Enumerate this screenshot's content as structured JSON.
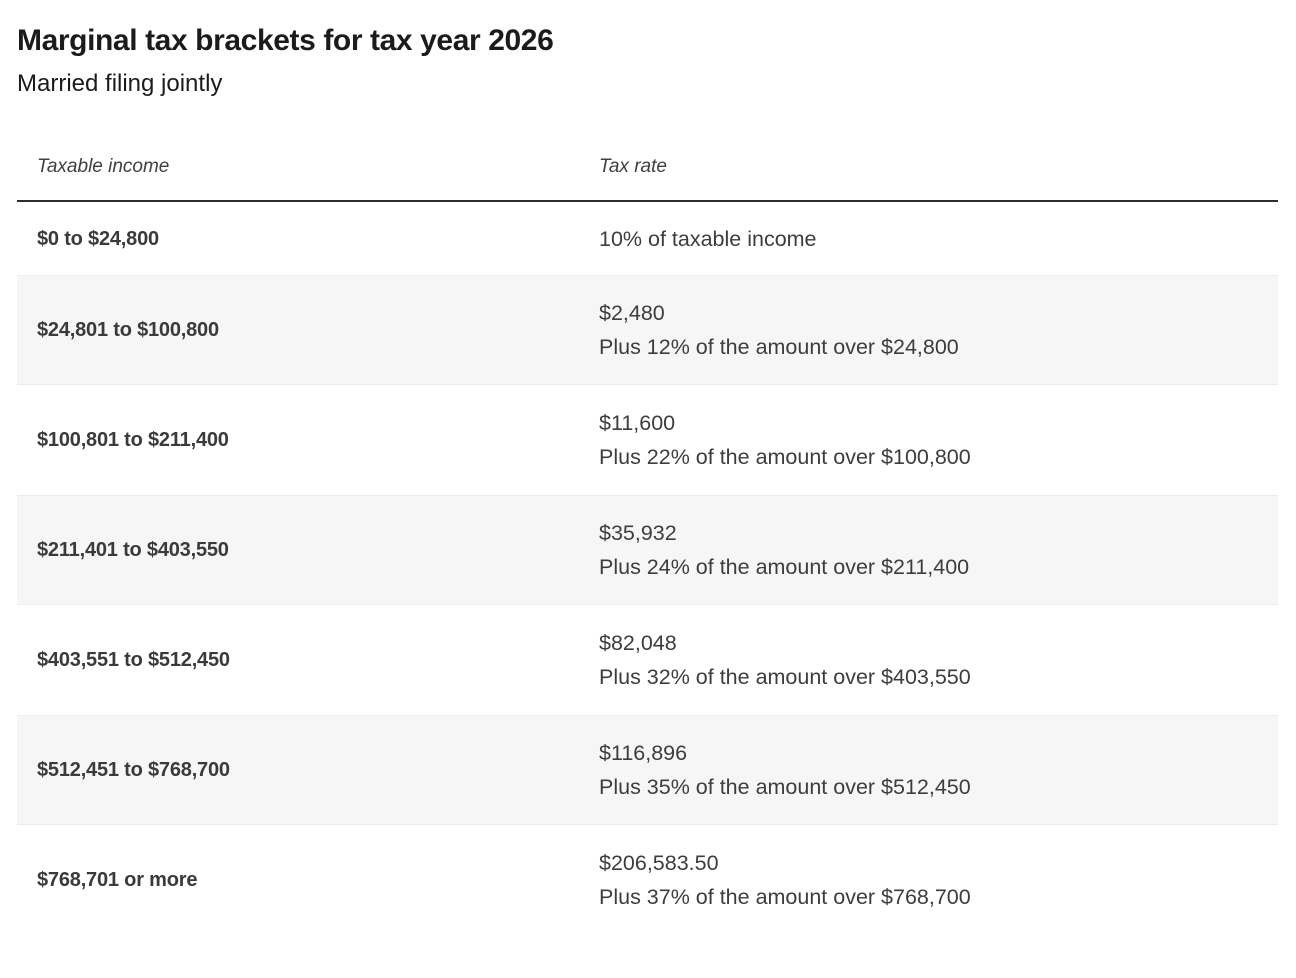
{
  "header": {
    "title": "Marginal tax brackets for tax year 2026",
    "subtitle": "Married filing jointly"
  },
  "table": {
    "columns": [
      {
        "label": "Taxable income"
      },
      {
        "label": "Tax rate"
      }
    ],
    "rows": [
      {
        "income": "$0 to $24,800",
        "rate_line1": "10% of taxable income",
        "rate_line2": ""
      },
      {
        "income": "$24,801 to $100,800",
        "rate_line1": "$2,480",
        "rate_line2": "Plus 12% of the amount over $24,800"
      },
      {
        "income": "$100,801 to $211,400",
        "rate_line1": "$11,600",
        "rate_line2": "Plus 22% of the amount over $100,800"
      },
      {
        "income": "$211,401 to $403,550",
        "rate_line1": "$35,932",
        "rate_line2": "Plus 24% of the amount over $211,400"
      },
      {
        "income": "$403,551 to $512,450",
        "rate_line1": "$82,048",
        "rate_line2": "Plus 32% of the amount over $403,550"
      },
      {
        "income": "$512,451 to $768,700",
        "rate_line1": "$116,896",
        "rate_line2": "Plus 35% of the amount over $512,450"
      },
      {
        "income": "$768,701 or more",
        "rate_line1": "$206,583.50",
        "rate_line2": "Plus 37% of the amount over $768,700"
      }
    ]
  },
  "colors": {
    "title_text": "#1b1b1b",
    "body_text": "#3d3d3d",
    "stripe_background": "#f6f6f6",
    "stripe_border": "#ececec",
    "header_rule": "#2e2e2e",
    "page_background": "#ffffff"
  },
  "chart_data": {
    "type": "table",
    "title": "Marginal tax brackets for tax year 2026",
    "subtitle": "Married filing jointly",
    "columns": [
      "Taxable income",
      "Tax rate"
    ],
    "rows": [
      [
        "$0 to $24,800",
        "10% of taxable income"
      ],
      [
        "$24,801 to $100,800",
        "$2,480\nPlus 12% of the amount over $24,800"
      ],
      [
        "$100,801 to $211,400",
        "$11,600\nPlus 22% of the amount over $100,800"
      ],
      [
        "$211,401 to $403,550",
        "$35,932\nPlus 24% of the amount over $211,400"
      ],
      [
        "$403,551 to $512,450",
        "$82,048\nPlus 32% of the amount over $403,550"
      ],
      [
        "$512,451 to $768,700",
        "$116,896\nPlus 35% of the amount over $512,450"
      ],
      [
        "$768,701 or more",
        "$206,583.50\nPlus 37% of the amount over $768,700"
      ]
    ],
    "brackets": [
      {
        "min": 0,
        "max": 24800,
        "rate_pct": 10,
        "base_tax": 0
      },
      {
        "min": 24801,
        "max": 100800,
        "rate_pct": 12,
        "base_tax": 2480
      },
      {
        "min": 100801,
        "max": 211400,
        "rate_pct": 22,
        "base_tax": 11600
      },
      {
        "min": 211401,
        "max": 403550,
        "rate_pct": 24,
        "base_tax": 35932
      },
      {
        "min": 403551,
        "max": 512450,
        "rate_pct": 32,
        "base_tax": 82048
      },
      {
        "min": 512451,
        "max": 768700,
        "rate_pct": 35,
        "base_tax": 116896
      },
      {
        "min": 768701,
        "max": null,
        "rate_pct": 37,
        "base_tax": 206583.5
      }
    ]
  }
}
